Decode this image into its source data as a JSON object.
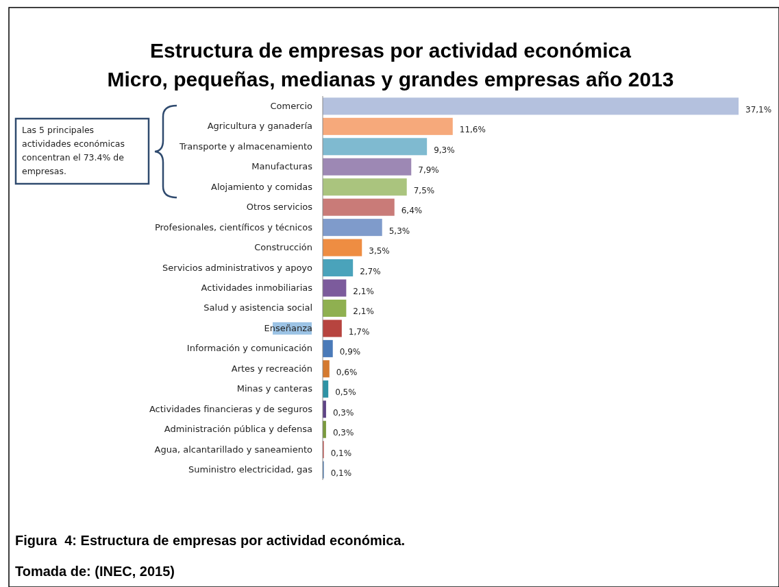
{
  "chart_data": {
    "type": "bar",
    "orientation": "horizontal",
    "title": "Estructura de empresas por actividad económica",
    "subtitle": "Micro, pequeñas, medianas y grandes empresas año 2013",
    "categories": [
      "Comercio",
      "Agricultura y ganadería",
      "Transporte y almacenamiento",
      "Manufacturas",
      "Alojamiento y comidas",
      "Otros servicios",
      "Profesionales, científicos y técnicos",
      "Construcción",
      "Servicios administrativos y apoyo",
      "Actividades inmobiliarias",
      "Salud y asistencia social",
      "Enseñanza",
      "Información y comunicación",
      "Artes y recreación",
      "Minas y canteras",
      "Actividades financieras y de seguros",
      "Administración pública y defensa",
      "Agua, alcantarillado y saneamiento",
      "Suministro electricidad, gas"
    ],
    "values": [
      37.1,
      11.6,
      9.3,
      7.9,
      7.5,
      6.4,
      5.3,
      3.5,
      2.7,
      2.1,
      2.1,
      1.7,
      0.9,
      0.6,
      0.5,
      0.3,
      0.3,
      0.1,
      0.1
    ],
    "value_labels": [
      "37,1%",
      "11,6%",
      "9,3%",
      "7,9%",
      "7,5%",
      "6,4%",
      "5,3%",
      "3,5%",
      "2,7%",
      "2,1%",
      "2,1%",
      "1,7%",
      "0,9%",
      "0,6%",
      "0,5%",
      "0,3%",
      "0,3%",
      "0,1%",
      "0,1%"
    ],
    "colors": [
      "#b4c1de",
      "#f6a97b",
      "#7fbad0",
      "#9d88b4",
      "#aac47e",
      "#c97b78",
      "#7f9bcb",
      "#ee8d42",
      "#4aa3bb",
      "#7c5b9c",
      "#8fb050",
      "#b7443f",
      "#4a7ab8",
      "#d47a30",
      "#2e93a5",
      "#5e4386",
      "#7a9a3d",
      "#c04a47",
      "#4a78b0"
    ],
    "annotations": [
      "Las 5 principales actividades económicas concentran el 73.4% de empresas.",
      "Figura  4: Estructura de empresas por actividad económica.",
      "Tomada de: (INEC, 2015)"
    ]
  }
}
